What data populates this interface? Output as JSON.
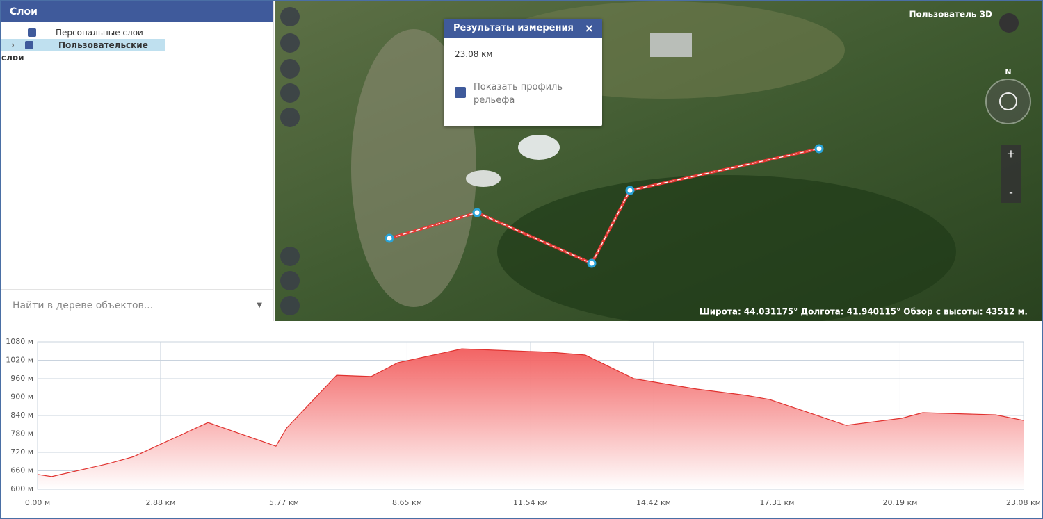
{
  "layers_panel": {
    "title": "Слои",
    "items": [
      "Персональные слои",
      "Пользовательские слои"
    ],
    "search_placeholder": "Найти в дереве объектов..."
  },
  "measure_popup": {
    "title": "Результаты измерения",
    "distance": "23.08 км",
    "checkbox_label": "Показать профиль рельефа"
  },
  "map": {
    "user_label": "Пользователь 3D",
    "compass_north": "N",
    "zoom_in": "+",
    "zoom_out": "-",
    "status": "Широта: 44.031175° Долгота: 41.940115° Обзор с высоты: 43512 м."
  },
  "chart_data": {
    "type": "area",
    "color": "#e0322f",
    "grid": true,
    "x": [
      0,
      0.33,
      1.68,
      2.25,
      3.99,
      5.58,
      5.83,
      7.0,
      7.81,
      8.43,
      9.93,
      12.01,
      12.82,
      13.96,
      15.43,
      16.57,
      17.14,
      18.93,
      20.23,
      20.72,
      22.43,
      23.08
    ],
    "values": [
      648,
      641,
      684,
      706,
      817,
      740,
      799,
      971,
      967,
      1012,
      1057,
      1046,
      1037,
      960,
      926,
      906,
      892,
      808,
      831,
      849,
      842,
      824
    ],
    "xlim": [
      0,
      23.08
    ],
    "ylim": [
      600,
      1080
    ],
    "xticks": [
      {
        "value": 0,
        "label": "0.00 м"
      },
      {
        "value": 2.88,
        "label": "2.88 км"
      },
      {
        "value": 5.77,
        "label": "5.77 км"
      },
      {
        "value": 8.65,
        "label": "8.65 км"
      },
      {
        "value": 11.54,
        "label": "11.54 км"
      },
      {
        "value": 14.42,
        "label": "14.42 км"
      },
      {
        "value": 17.31,
        "label": "17.31 км"
      },
      {
        "value": 20.19,
        "label": "20.19 км"
      },
      {
        "value": 23.08,
        "label": "23.08 км"
      }
    ],
    "yticks": [
      {
        "value": 600,
        "label": "600 м"
      },
      {
        "value": 660,
        "label": "660 м"
      },
      {
        "value": 720,
        "label": "720 м"
      },
      {
        "value": 780,
        "label": "780 м"
      },
      {
        "value": 840,
        "label": "840 м"
      },
      {
        "value": 900,
        "label": "900 м"
      },
      {
        "value": 960,
        "label": "960 м"
      },
      {
        "value": 1020,
        "label": "1020 м"
      },
      {
        "value": 1080,
        "label": "1080 м"
      }
    ]
  }
}
